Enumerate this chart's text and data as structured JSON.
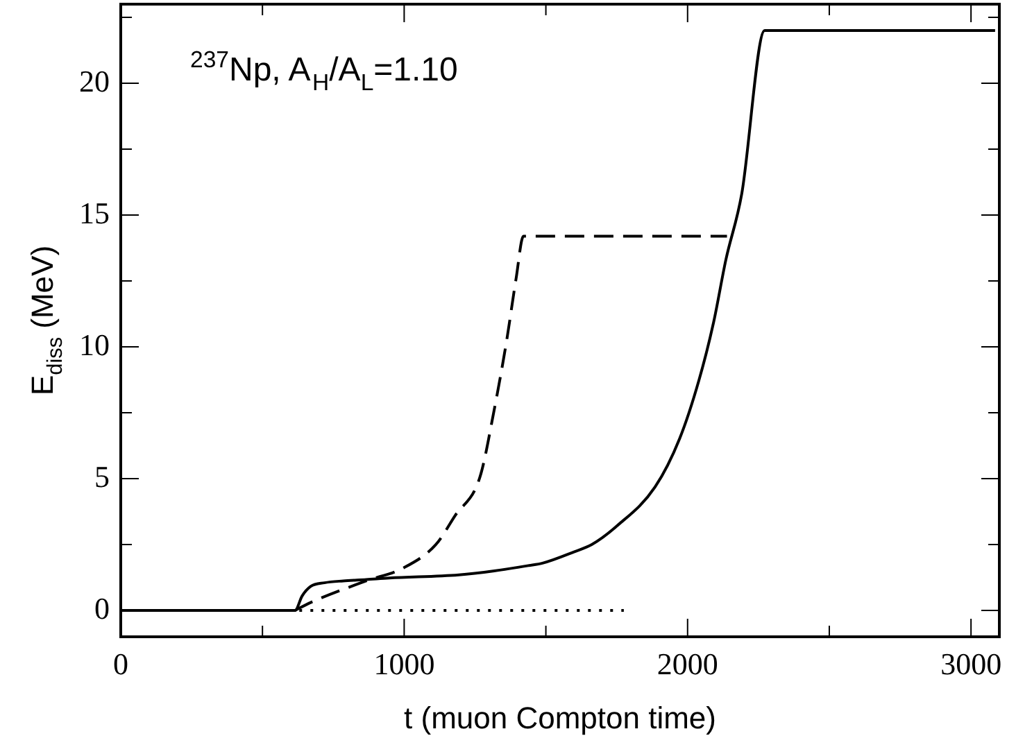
{
  "chart_data": {
    "type": "line",
    "xlabel": "t (muon Compton time)",
    "ylabel": "E$_{diss}$ (MeV)",
    "annotations": [
      "$^{237}$Np, A$_{H}$/A$_{L}$=1.10"
    ],
    "xlim": [
      0,
      3100
    ],
    "ylim": [
      -1,
      23
    ],
    "xticks": [
      0,
      {
        "value": 500,
        "label": null
      },
      1000,
      {
        "value": 1500,
        "label": null
      },
      2000,
      {
        "value": 2500,
        "label": null
      },
      3000
    ],
    "yticks": [
      0,
      {
        "value": 2.5,
        "label": null
      },
      5,
      {
        "value": 7.5,
        "label": null
      },
      10,
      {
        "value": 12.5,
        "label": null
      },
      15,
      {
        "value": 17.5,
        "label": null
      },
      20,
      {
        "value": 22.5,
        "label": null
      }
    ],
    "grid": false,
    "legend": false,
    "marker": "none",
    "series": [
      {
        "color": "#000000",
        "line_style": "solid",
        "x": [
          0,
          615,
          640,
          670,
          719,
          785,
          866,
          948,
          1193,
          1318,
          1438,
          1490,
          1601,
          1662,
          1749,
          1885,
          1972,
          2040,
          2092,
          2135,
          2191,
          2272,
          3085
        ],
        "values": [
          0,
          0,
          0.55,
          0.91,
          1.05,
          1.12,
          1.17,
          1.23,
          1.35,
          1.5,
          1.7,
          1.8,
          2.23,
          2.5,
          3.19,
          4.68,
          6.52,
          8.73,
          10.94,
          13.3,
          15.8,
          22,
          22
        ]
      },
      {
        "color": "#000000",
        "line_style": "dashed",
        "x": [
          615,
          670,
          866,
          997,
          1111,
          1180,
          1267,
          1318,
          1361,
          1395,
          1421,
          2139
        ],
        "values": [
          0,
          0.3,
          1.12,
          1.61,
          2.49,
          3.6,
          5.05,
          7.63,
          10.2,
          12.6,
          14.2,
          14.2
        ]
      },
      {
        "color": "#000000",
        "line_style": "dotted",
        "x": [
          630,
          1775
        ],
        "values": [
          0,
          0
        ]
      }
    ]
  }
}
